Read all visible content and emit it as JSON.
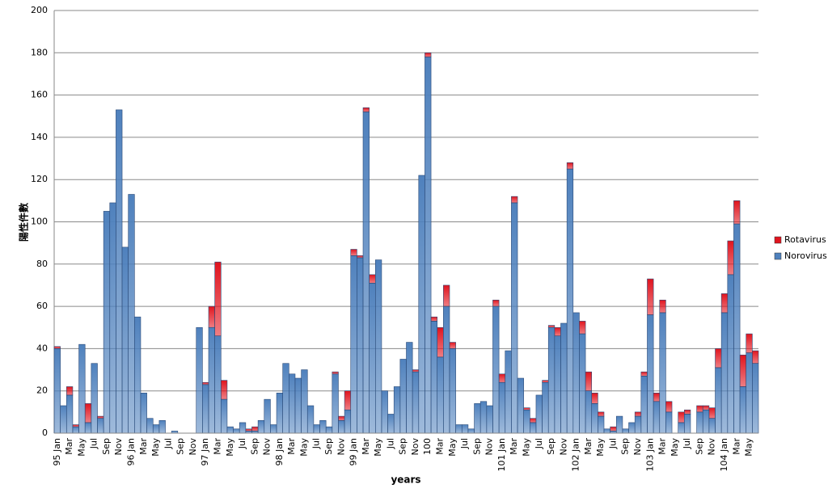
{
  "chart_data": {
    "type": "bar",
    "stacked": true,
    "y_label": "陽性件數",
    "x_label": "years",
    "categories": [
      "95 Jan",
      null,
      "Mar",
      null,
      "May",
      null,
      "Jul",
      null,
      "Sep",
      null,
      "Nov",
      null,
      "96 Jan",
      null,
      "Mar",
      null,
      "May",
      null,
      "Jul",
      null,
      "Sep",
      null,
      "Nov",
      null,
      "97 Jan",
      null,
      "Mar",
      null,
      "May",
      null,
      "Jul",
      null,
      "Sep",
      null,
      "Nov",
      null,
      "98 Jan",
      null,
      "Mar",
      null,
      "May",
      null,
      "Jul",
      null,
      "Sep",
      null,
      "Nov",
      null,
      "99 Jan",
      null,
      "Mar",
      null,
      "May",
      null,
      "Jul",
      null,
      "Sep",
      null,
      "Nov",
      null,
      "100",
      null,
      "Mar",
      null,
      "May",
      null,
      "Jul",
      null,
      "Sep",
      null,
      "Nov",
      null,
      "101 Jan",
      null,
      "Mar",
      null,
      "May",
      null,
      "Jul",
      null,
      "Sep",
      null,
      "Nov",
      null,
      "102 Jan",
      null,
      "Mar",
      null,
      "May",
      null,
      "Jul",
      null,
      "Sep",
      null,
      "Nov",
      null,
      "103 Jan",
      null,
      "Mar",
      null,
      "May",
      null,
      "Jul",
      null,
      "Sep",
      null,
      "Nov",
      null,
      "104 Jan",
      null,
      "Mar",
      null,
      "May",
      null
    ],
    "series": [
      {
        "name": "Norovirus",
        "color": "#4f81bd",
        "values": [
          40,
          13,
          18,
          3,
          42,
          5,
          33,
          7,
          105,
          109,
          153,
          88,
          113,
          55,
          19,
          7,
          4,
          6,
          0,
          1,
          0,
          0,
          0,
          50,
          23,
          50,
          46,
          16,
          3,
          2,
          5,
          1,
          1,
          6,
          16,
          4,
          19,
          33,
          28,
          26,
          30,
          13,
          4,
          6,
          3,
          28,
          6,
          11,
          84,
          83,
          152,
          71,
          82,
          20,
          9,
          22,
          35,
          43,
          29,
          122,
          178,
          53,
          36,
          60,
          40,
          4,
          4,
          2,
          14,
          15,
          13,
          60,
          24,
          39,
          109,
          26,
          11,
          5,
          18,
          24,
          50,
          46,
          52,
          125,
          57,
          47,
          20,
          14,
          8,
          2,
          1,
          8,
          2,
          5,
          8,
          27,
          56,
          15,
          57,
          10,
          0,
          5,
          9,
          0,
          10,
          11,
          7,
          31,
          57,
          75,
          99,
          22,
          38,
          33
        ]
      },
      {
        "name": "Rotavirus",
        "color": "#e0141e",
        "values": [
          1,
          0,
          4,
          1,
          0,
          9,
          0,
          1,
          0,
          0,
          0,
          0,
          0,
          0,
          0,
          0,
          0,
          0,
          0,
          0,
          0,
          0,
          0,
          0,
          1,
          10,
          35,
          9,
          0,
          0,
          0,
          1,
          2,
          0,
          0,
          0,
          0,
          0,
          0,
          0,
          0,
          0,
          0,
          0,
          0,
          1,
          2,
          9,
          3,
          1,
          2,
          4,
          0,
          0,
          0,
          0,
          0,
          0,
          1,
          0,
          2,
          2,
          14,
          10,
          3,
          0,
          0,
          0,
          0,
          0,
          0,
          3,
          4,
          0,
          3,
          0,
          1,
          2,
          0,
          1,
          1,
          4,
          0,
          3,
          0,
          6,
          9,
          5,
          2,
          0,
          2,
          0,
          0,
          0,
          2,
          2,
          17,
          4,
          6,
          5,
          0,
          5,
          2,
          0,
          3,
          2,
          5,
          9,
          9,
          16,
          11,
          15,
          9,
          6
        ]
      }
    ],
    "ylim": [
      0,
      200
    ],
    "yticks": [
      0,
      20,
      40,
      60,
      80,
      100,
      120,
      140,
      160,
      180,
      200
    ],
    "grid": true,
    "legend": "right"
  }
}
